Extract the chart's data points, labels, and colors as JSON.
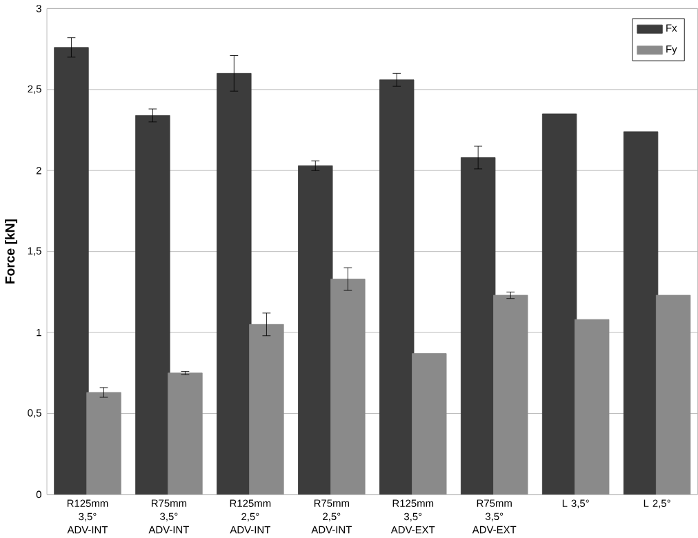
{
  "chart_data": {
    "type": "bar",
    "ylabel": "Force [kN]",
    "categories": [
      "R125mm 3,5° ADV-INT",
      "R75mm 3,5° ADV-INT",
      "R125mm 2,5° ADV-INT",
      "R75mm 2,5° ADV-INT",
      "R125mm 3,5° ADV-EXT",
      "R75mm 3,5° ADV-EXT",
      "L 3,5°",
      "L 2,5°"
    ],
    "series": [
      {
        "name": "Fx",
        "color": "#3c3c3c",
        "values": [
          2.76,
          2.34,
          2.6,
          2.03,
          2.56,
          2.08,
          2.35,
          2.24
        ],
        "errors": [
          0.06,
          0.04,
          0.11,
          0.03,
          0.04,
          0.07,
          null,
          null
        ]
      },
      {
        "name": "Fy",
        "color": "#8a8a8a",
        "values": [
          0.63,
          0.75,
          1.05,
          1.33,
          0.87,
          1.23,
          1.08,
          1.23
        ],
        "errors": [
          0.03,
          0.01,
          0.07,
          0.07,
          null,
          0.02,
          null,
          null
        ]
      }
    ],
    "ylim": [
      0,
      3
    ],
    "yticks": [
      0,
      {
        "value": 0.5,
        "label": "0,5"
      },
      1,
      {
        "value": 1.5,
        "label": "1,5"
      },
      2,
      {
        "value": 2.5,
        "label": "2,5"
      },
      3
    ],
    "grid": "y",
    "legend": "top right"
  }
}
